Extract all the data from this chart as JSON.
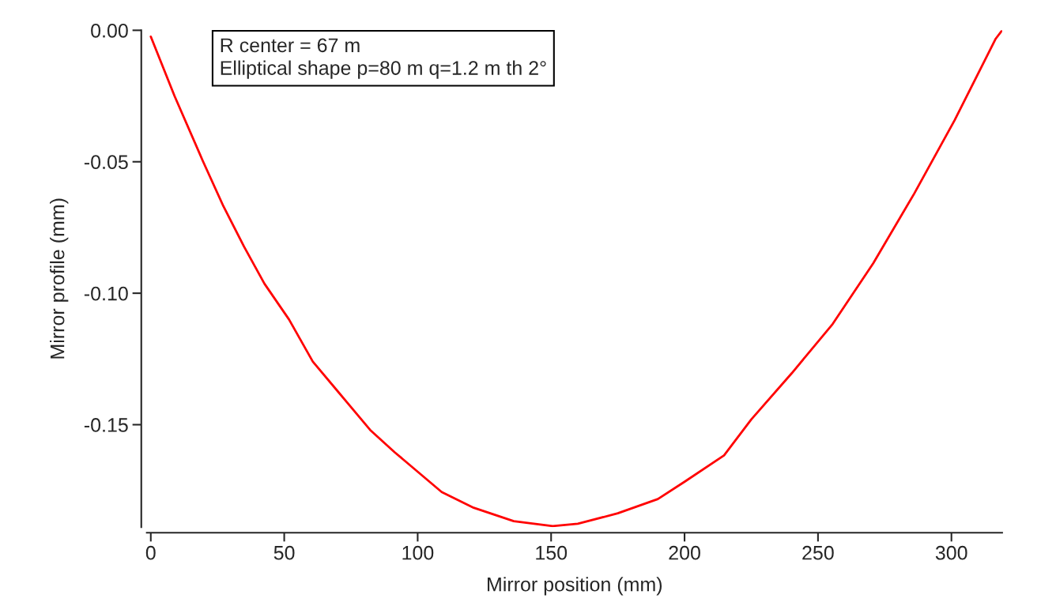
{
  "chart_data": {
    "type": "line",
    "xlabel": "Mirror position (mm)",
    "ylabel": "Mirror profile (mm)",
    "annotations": [
      "R center = 67 m",
      "Elliptical shape p=80 m q=1.2 m th 2°"
    ],
    "series": [
      {
        "color": "#ff0000",
        "x": [
          0,
          8.9,
          19.5,
          27.2,
          34.9,
          42.6,
          51.8,
          60.7,
          69.8,
          82.2,
          91.4,
          109,
          121,
          136,
          150.6,
          160,
          175,
          190,
          200,
          214.8,
          225,
          240.2,
          255.5,
          270.7,
          286,
          301.2,
          316.6,
          319
        ],
        "values": [
          -0.0024,
          -0.025,
          -0.0497,
          -0.0669,
          -0.0822,
          -0.0964,
          -0.11,
          -0.126,
          -0.137,
          -0.152,
          -0.1605,
          -0.1756,
          -0.1816,
          -0.1867,
          -0.1886,
          -0.1877,
          -0.1837,
          -0.1783,
          -0.1717,
          -0.1617,
          -0.148,
          -0.1304,
          -0.1117,
          -0.0886,
          -0.0622,
          -0.0342,
          -0.0032,
          0.0
        ]
      }
    ],
    "xlim": [
      -1.5,
      319
    ],
    "ylim": [
      -0.189,
      0.0
    ],
    "xticks": [
      0,
      50,
      100,
      150,
      200,
      250,
      300
    ],
    "yticks": [
      {
        "value": 0,
        "label": "0.00"
      },
      {
        "value": -0.05,
        "label": "-0.05"
      },
      {
        "value": -0.1,
        "label": "-0.10"
      },
      {
        "value": -0.15,
        "label": "-0.15"
      }
    ],
    "grid": false,
    "legend": false,
    "marker": "none",
    "line_style": "solid"
  }
}
